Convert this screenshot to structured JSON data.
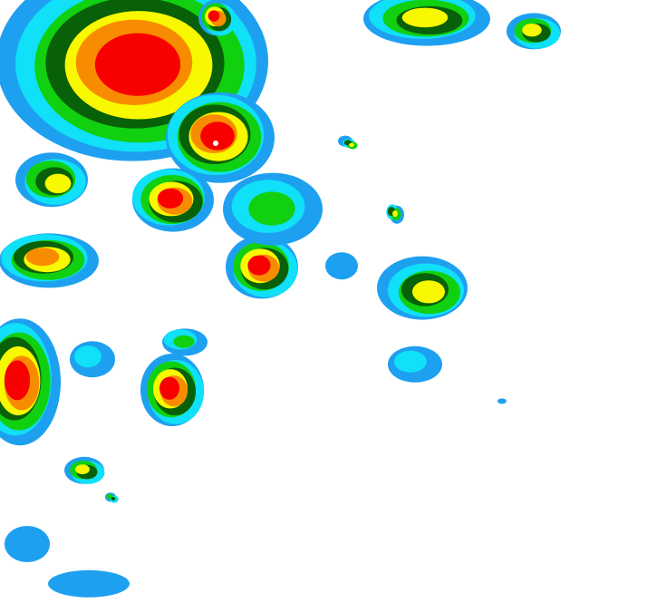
{
  "map": {
    "type": "radar-reflectivity",
    "background": "#ffffff",
    "palette": {
      "light_blue": "#1ea0f0",
      "cyan": "#10e0f8",
      "green": "#10d010",
      "dark_green": "#086008",
      "yellow": "#f8f800",
      "orange": "#f88c00",
      "red": "#f80000",
      "peak": "#ffffff"
    }
  }
}
